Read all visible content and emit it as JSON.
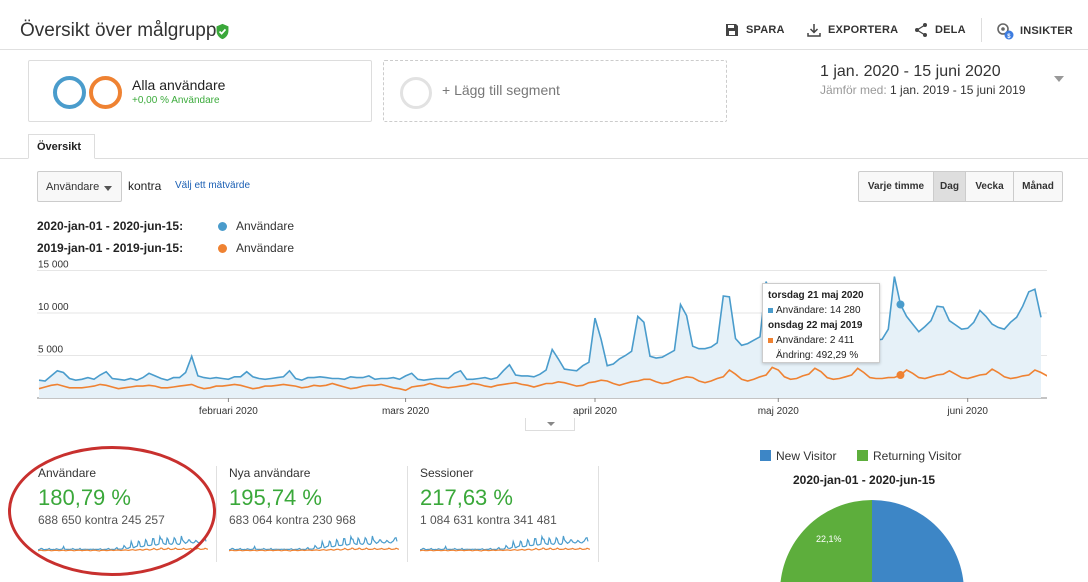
{
  "header": {
    "title": "Översikt över målgrupp",
    "actions": [
      {
        "id": "save",
        "label": "SPARA"
      },
      {
        "id": "export",
        "label": "EXPORTERA"
      },
      {
        "id": "share",
        "label": "DELA"
      },
      {
        "id": "insights",
        "label": "INSIKTER"
      }
    ]
  },
  "segments": {
    "active": {
      "name": "Alla användare",
      "sub": "+0,00 % Användare"
    },
    "add_label": "+ Lägg till segment"
  },
  "date": {
    "range": "1 jan. 2020 - 15 juni 2020",
    "compare_prefix": "Jämför med:",
    "compare_range": "1 jan. 2019 - 15 juni 2019"
  },
  "tabs": {
    "overview": "Översikt"
  },
  "controls": {
    "metric": "Användare",
    "vs": "kontra",
    "choose_metric": "Välj ett mätvärde",
    "granularity": [
      "Varje timme",
      "Dag",
      "Vecka",
      "Månad"
    ],
    "active_granularity": "Dag"
  },
  "legend": {
    "current_range": "2020-jan-01 - 2020-jun-15:",
    "previous_range": "2019-jan-01 - 2019-jun-15:",
    "series_name": "Användare"
  },
  "tooltip": {
    "date1": "torsdag 21 maj 2020",
    "line1": "Användare: 14 280",
    "date2": "onsdag 22 maj 2019",
    "line2": "Användare: 2 411",
    "change": "Ändring: 492,29 %"
  },
  "metrics": [
    {
      "label": "Användare",
      "pct": "180,79 %",
      "cmp": "688 650 kontra 245 257"
    },
    {
      "label": "Nya användare",
      "pct": "195,74 %",
      "cmp": "683 064 kontra 230 968"
    },
    {
      "label": "Sessioner",
      "pct": "217,63 %",
      "cmp": "1 084 631 kontra 341 481"
    }
  ],
  "pie": {
    "legend": [
      "New Visitor",
      "Returning Visitor"
    ],
    "title": "2020-jan-01 - 2020-jun-15",
    "returning_label": "22,1%"
  },
  "colors": {
    "current": "#4a9ccc",
    "previous": "#ef8232",
    "new_visitor": "#3d86c6",
    "returning_visitor": "#5dae3c",
    "positive": "#3aa83a",
    "highlight_oval": "#c8302e"
  },
  "chart_data": {
    "type": "line",
    "title": "",
    "xlabel": "",
    "ylabel": "Användare",
    "ylim": [
      0,
      16000
    ],
    "yticks": [
      5000,
      10000,
      15000
    ],
    "ytick_labels": [
      "5 000",
      "10 000",
      "15 000"
    ],
    "x_tick_labels": [
      "februari 2020",
      "mars 2020",
      "april 2020",
      "maj 2020",
      "juni 2020"
    ],
    "x_tick_days": [
      31,
      60,
      91,
      121,
      152
    ],
    "highlight_day": 141,
    "series": [
      {
        "name": "2020-jan-01 - 2020-jun-15: Användare",
        "values": [
          2100,
          2000,
          2600,
          3200,
          3000,
          2300,
          2100,
          2200,
          2400,
          2200,
          2700,
          3100,
          2300,
          2200,
          2100,
          2300,
          2100,
          2400,
          2900,
          2600,
          2300,
          2100,
          2400,
          2400,
          3000,
          4900,
          2600,
          2400,
          2300,
          2400,
          2300,
          2200,
          2500,
          2500,
          3100,
          2500,
          2300,
          2200,
          2300,
          2400,
          2500,
          3200,
          2300,
          2100,
          2400,
          2400,
          2500,
          2400,
          2300,
          2300,
          2200,
          2500,
          2400,
          2400,
          2600,
          2200,
          2300,
          2300,
          2400,
          2200,
          2600,
          2900,
          2200,
          2100,
          2200,
          2300,
          2300,
          2300,
          2900,
          3200,
          2200,
          2200,
          2300,
          2400,
          2200,
          2400,
          3200,
          3900,
          2700,
          2600,
          2600,
          2500,
          2800,
          3300,
          5700,
          4600,
          3400,
          3300,
          3200,
          3800,
          4200,
          9400,
          6900,
          3800,
          4000,
          4600,
          5000,
          5500,
          9600,
          8900,
          4900,
          4700,
          4800,
          5200,
          5600,
          11000,
          9700,
          6100,
          5800,
          5800,
          6000,
          6500,
          12000,
          11900,
          7000,
          6200,
          6400,
          6800,
          7200,
          13700,
          11600,
          11300,
          8100,
          7300,
          6900,
          6800,
          12400,
          11200,
          7600,
          7100,
          6800,
          7200,
          8700,
          12700,
          11500,
          8200,
          7100,
          6800,
          6900,
          8100,
          14280,
          11000,
          9600,
          8700,
          7800,
          8400,
          9100,
          10800,
          10700,
          9100,
          8600,
          8100,
          8200,
          8900,
          10300,
          9600,
          8700,
          8300,
          8100,
          8900,
          9500,
          10800,
          12500,
          12800,
          9500
        ]
      },
      {
        "name": "2019-jan-01 - 2019-jun-15: Användare",
        "values": [
          1100,
          1300,
          1500,
          1600,
          1400,
          1200,
          1200,
          1200,
          1300,
          1400,
          1600,
          1500,
          1300,
          1100,
          1200,
          1300,
          1400,
          1400,
          1500,
          1400,
          1200,
          1200,
          1300,
          1400,
          1500,
          1600,
          1300,
          1100,
          1200,
          1400,
          1400,
          1500,
          1600,
          1500,
          1300,
          1100,
          1200,
          1400,
          1400,
          1500,
          1600,
          1500,
          1400,
          1200,
          1300,
          1500,
          1400,
          1500,
          1700,
          1500,
          1300,
          1100,
          1200,
          1400,
          1500,
          1500,
          1600,
          1400,
          1200,
          1100,
          900,
          1300,
          1400,
          1500,
          1700,
          1500,
          1300,
          1200,
          1300,
          1400,
          1500,
          1700,
          1600,
          1400,
          1300,
          1500,
          1600,
          1700,
          1800,
          1600,
          1500,
          1300,
          1500,
          1700,
          1700,
          1900,
          1800,
          1600,
          1400,
          1500,
          1800,
          1900,
          2100,
          2000,
          1700,
          1500,
          1700,
          1900,
          2000,
          2200,
          2200,
          1900,
          1700,
          1800,
          2100,
          2300,
          2500,
          2400,
          2000,
          1800,
          2000,
          2300,
          2500,
          3300,
          2800,
          2200,
          2000,
          2200,
          2500,
          2700,
          3600,
          3300,
          2500,
          2200,
          2300,
          2600,
          2800,
          3500,
          3100,
          2400,
          2200,
          2300,
          2500,
          2700,
          3500,
          3000,
          2400,
          2300,
          2300,
          2400,
          2411,
          2700,
          3300,
          2900,
          2400,
          2300,
          2500,
          2700,
          2800,
          3200,
          2800,
          2400,
          2300,
          2500,
          2700,
          2800,
          3400,
          3000,
          2500,
          2300,
          2400,
          2600,
          2700,
          3300,
          3000,
          2600,
          2500,
          2700
        ]
      }
    ]
  }
}
